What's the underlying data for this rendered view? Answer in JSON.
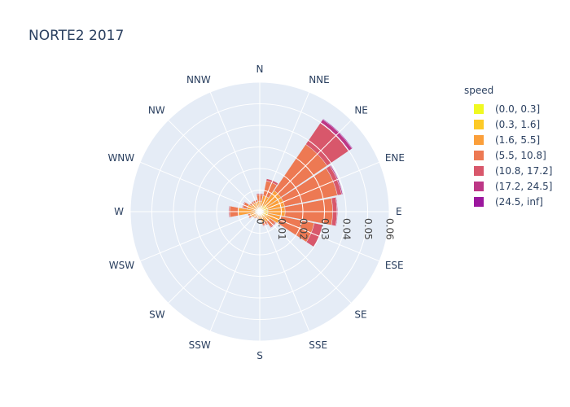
{
  "chart_data": {
    "type": "barpolar",
    "title": "NORTE2 2017",
    "legend_title": "speed",
    "radial_range": [
      0,
      0.06
    ],
    "radial_ticks": [
      "0",
      "0.01",
      "0.02",
      "0.03",
      "0.04",
      "0.05",
      "0.06"
    ],
    "directions": [
      "N",
      "NNE",
      "NE",
      "ENE",
      "E",
      "ESE",
      "SE",
      "SSE",
      "S",
      "SSW",
      "SW",
      "WSW",
      "W",
      "WNW",
      "NW",
      "NNW"
    ],
    "series": [
      {
        "name": "(0.0, 0.3]",
        "color": "#f0f921",
        "values": [
          0.0004,
          0.0006,
          0.0008,
          0.0008,
          0.0008,
          0.0008,
          0.0006,
          0.0005,
          0.0004,
          0.0004,
          0.0004,
          0.0004,
          0.0005,
          0.0005,
          0.0004,
          0.0004
        ]
      },
      {
        "name": "(0.3, 1.6]",
        "color": "#fdca26",
        "values": [
          0.0015,
          0.002,
          0.003,
          0.003,
          0.003,
          0.003,
          0.002,
          0.0015,
          0.0012,
          0.001,
          0.001,
          0.0012,
          0.0015,
          0.0015,
          0.0012,
          0.0012
        ]
      },
      {
        "name": "(1.6, 5.5]",
        "color": "#fb9f3a",
        "values": [
          0.003,
          0.005,
          0.008,
          0.008,
          0.008,
          0.006,
          0.003,
          0.003,
          0.002,
          0.0015,
          0.002,
          0.003,
          0.008,
          0.004,
          0.003,
          0.003
        ]
      },
      {
        "name": "(5.5, 10.8]",
        "color": "#ed7953",
        "values": [
          0.003,
          0.007,
          0.026,
          0.025,
          0.022,
          0.016,
          0.003,
          0.0015,
          0.0005,
          0.0005,
          0.0005,
          0.001,
          0.004,
          0.002,
          0.001,
          0.001
        ]
      },
      {
        "name": "(10.8, 17.2]",
        "color": "#d8576b",
        "values": [
          0.0005,
          0.001,
          0.012,
          0.002,
          0.002,
          0.004,
          0.0005,
          0.0004,
          0,
          0,
          0,
          0.0002,
          0.0004,
          0.0004,
          0.0002,
          0.0002
        ]
      },
      {
        "name": "(17.2, 24.5]",
        "color": "#bd3786",
        "values": [
          0,
          0,
          0.002,
          0.0005,
          0.0003,
          0.0004,
          0,
          0,
          0,
          0,
          0,
          0,
          0,
          0,
          0,
          0
        ]
      },
      {
        "name": "(24.5, inf]",
        "color": "#9c179e",
        "values": [
          0,
          0,
          0.0003,
          0,
          0,
          0,
          0,
          0,
          0,
          0,
          0,
          0,
          0,
          0,
          0,
          0
        ]
      }
    ]
  },
  "colors": {
    "polar_bg": "#e5ecf6",
    "grid": "#ffffff",
    "text": "#2a3f5f",
    "tick_text": "#444444"
  }
}
